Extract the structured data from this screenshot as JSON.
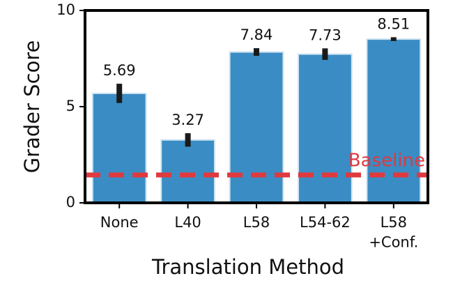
{
  "chart_data": {
    "type": "bar",
    "y_label": "Grader Score",
    "x_label": "Translation Method",
    "categories": [
      "None",
      "L40",
      "L58",
      "L54-62",
      "L58\n+Conf."
    ],
    "values": [
      5.69,
      3.27,
      7.84,
      7.73,
      8.51
    ],
    "errors": [
      0.5,
      0.35,
      0.2,
      0.3,
      0.1
    ],
    "color": "#3a8dc4",
    "error_color": "#1a1a1a",
    "ylim": [
      0,
      10
    ],
    "yticks": [
      0,
      5,
      10
    ],
    "baseline": {
      "value": 1.45,
      "label": "Baseline",
      "color": "#e0393e"
    }
  }
}
